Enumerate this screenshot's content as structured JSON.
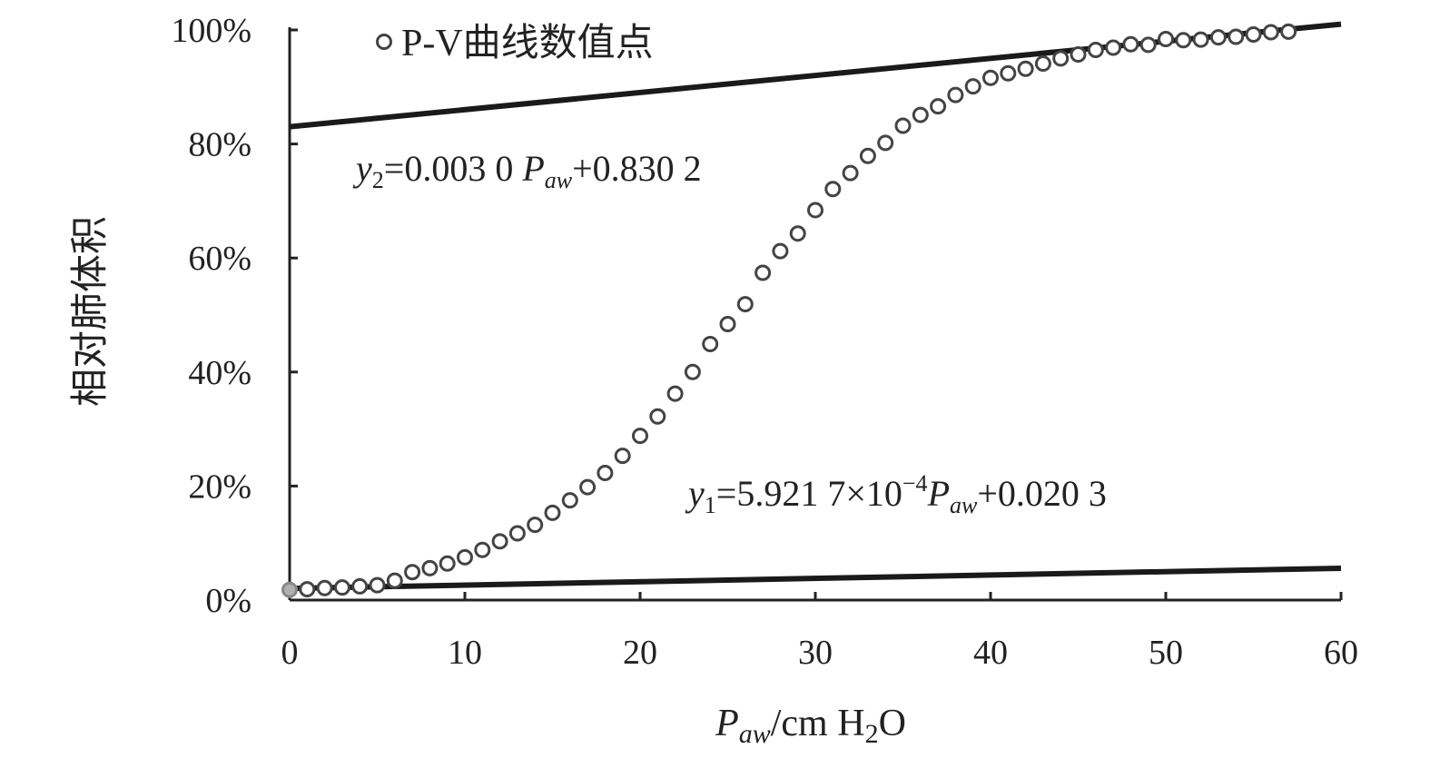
{
  "chart_data": {
    "type": "scatter",
    "title": "",
    "xlabel": {
      "var": "P",
      "sub": "aw",
      "rest": "/cm H",
      "sub2": "2",
      "rest2": "O"
    },
    "ylabel": "相对肺体积",
    "xlim": [
      0,
      60
    ],
    "ylim": [
      0,
      100
    ],
    "x_ticks": [
      "0",
      "10",
      "20",
      "30",
      "40",
      "50",
      "60"
    ],
    "y_ticks": [
      "0%",
      "20%",
      "40%",
      "60%",
      "80%",
      "100%"
    ],
    "grid": false,
    "legend": {
      "position": "top-left",
      "label": "P-V曲线数值点"
    },
    "series": [
      {
        "name": "P-V曲线数值点",
        "marker": "open-circle",
        "x": [
          0,
          1,
          2,
          3,
          4,
          5,
          6,
          7,
          8,
          9,
          10,
          11,
          12,
          13,
          14,
          15,
          16,
          17,
          18,
          19,
          20,
          21,
          22,
          23,
          24,
          25,
          26,
          27,
          28,
          29,
          30,
          31,
          32,
          33,
          34,
          35,
          36,
          37,
          38,
          39,
          40,
          41,
          42,
          43,
          44,
          45,
          46,
          47,
          48,
          49,
          50,
          51,
          52,
          53,
          54,
          55,
          56,
          57
        ],
        "y": [
          1.8,
          1.9,
          2.1,
          2.2,
          2.4,
          2.6,
          3.4,
          4.9,
          5.6,
          6.4,
          7.5,
          8.8,
          10.3,
          11.7,
          13.2,
          15.3,
          17.5,
          19.8,
          22.3,
          25.3,
          28.8,
          32.2,
          36.2,
          40.0,
          44.9,
          48.4,
          51.9,
          57.4,
          61.2,
          64.3,
          68.4,
          72.1,
          74.9,
          77.9,
          80.2,
          83.2,
          85.1,
          86.6,
          88.6,
          90.1,
          91.6,
          92.4,
          93.2,
          94.1,
          95.0,
          95.7,
          96.5,
          96.9,
          97.5,
          97.4,
          98.4,
          98.2,
          98.3,
          98.7,
          98.8,
          99.2,
          99.6,
          99.7
        ]
      },
      {
        "name": "",
        "type": "line",
        "equation": "y1 = 5.9217e-4 * Paw + 0.0203",
        "slope": 0.00059217,
        "intercept": 0.0203,
        "x": [
          0,
          60
        ],
        "y": [
          2.03,
          5.58
        ]
      },
      {
        "name": "",
        "type": "line",
        "equation": "y2 = 0.0030 * Paw + 0.8302",
        "slope": 0.003,
        "intercept": 0.8302,
        "x": [
          0,
          60
        ],
        "y": [
          83.02,
          101.02
        ]
      }
    ],
    "annotations": [
      {
        "id": "y2",
        "var": "y",
        "sub": "2",
        "text1": "=0.003 0 ",
        "pvar": "P",
        "psub": "aw",
        "text2": "+0.830 2"
      },
      {
        "id": "y1",
        "var": "y",
        "sub": "1",
        "text1": "=5.921 7×10",
        "sup": "−4",
        "pvar": "P",
        "psub": "aw",
        "text2": "+0.020 3"
      }
    ],
    "first_point_color": "#b0b0b0"
  }
}
